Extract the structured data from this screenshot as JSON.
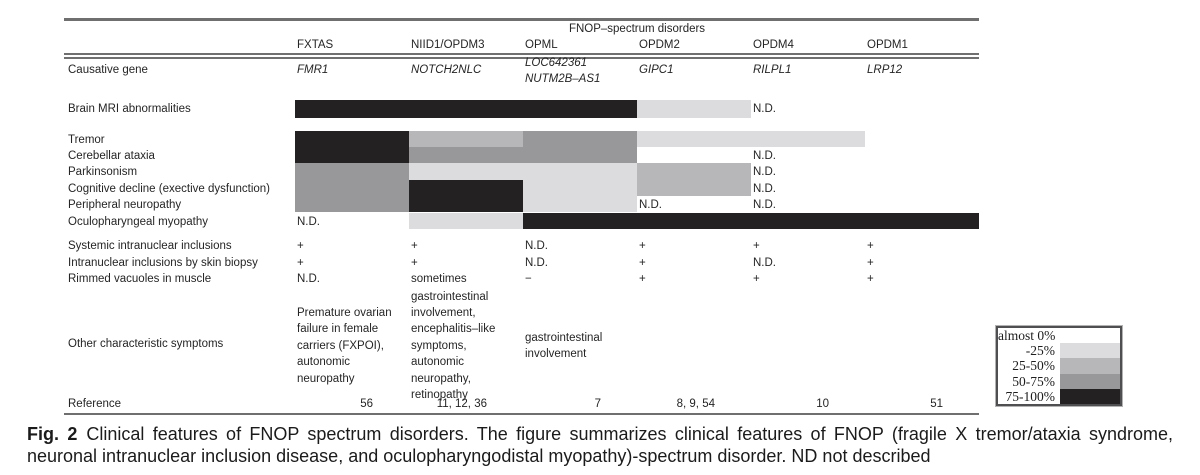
{
  "figure": {
    "group_header": "FNOP–spectrum disorders",
    "columns": [
      "FXTAS",
      "NIID1/OPDM3",
      "OPML",
      "OPDM2",
      "OPDM4",
      "OPDM1"
    ],
    "causative_gene_label": "Causative gene",
    "causative_genes": [
      "FMR1",
      "NOTCH2NLC",
      "LOC642361\nNUTM2B–AS1",
      "GIPC1",
      "RILPL1",
      "LRP12"
    ],
    "level_colors": {
      "-25%": "#dcdcde",
      "25-50%": "#b7b7b9",
      "50-75%": "#98989a",
      "75-100%": "#242122"
    },
    "heatmap_rows": [
      {
        "label": "Brain MRI abnormalities",
        "values": [
          "75-100%",
          "75-100%",
          "75-100%",
          "-25%",
          "N.D.",
          ""
        ]
      },
      {
        "label": "Tremor",
        "values": [
          "75-100%",
          "25-50%",
          "50-75%",
          "-25%",
          "-25%",
          ""
        ]
      },
      {
        "label": "Cerebellar ataxia",
        "values": [
          "75-100%",
          "50-75%",
          "50-75%",
          "",
          "N.D.",
          ""
        ]
      },
      {
        "label": "Parkinsonism",
        "values": [
          "50-75%",
          "-25%",
          "-25%",
          "25-50%",
          "N.D.",
          ""
        ]
      },
      {
        "label": "Cognitive decline (exective dysfunction)",
        "values": [
          "50-75%",
          "75-100%",
          "-25%",
          "25-50%",
          "N.D.",
          ""
        ]
      },
      {
        "label": "Peripheral neuropathy",
        "values": [
          "50-75%",
          "75-100%",
          "-25%",
          "N.D.",
          "N.D.",
          ""
        ]
      },
      {
        "label": "Oculopharyngeal myopathy",
        "values": [
          "N.D.",
          "-25%",
          "75-100%",
          "75-100%",
          "75-100%",
          "75-100%"
        ]
      }
    ],
    "value_rows": [
      {
        "label": "Systemic intranuclear inclusions",
        "values": [
          "+",
          "+",
          "N.D.",
          "+",
          "+",
          "+"
        ]
      },
      {
        "label": "Intranuclear inclusions by skin biopsy",
        "values": [
          "+",
          "+",
          "N.D.",
          "+",
          "N.D.",
          "+"
        ]
      },
      {
        "label": "Rimmed vacuoles in muscle",
        "values": [
          "N.D.",
          "sometimes",
          "−",
          "+",
          "+",
          "+"
        ]
      }
    ],
    "other_symptoms": {
      "label": "Other characteristic symptoms",
      "blocks": [
        {
          "col": 0,
          "lines": [
            "Premature ovarian",
            "failure in female",
            "carriers (FXPOI),",
            "autonomic",
            "neuropathy"
          ]
        },
        {
          "col": 1,
          "lines": [
            "gastrointestinal",
            "involvement,",
            "encephalitis–like",
            "symptoms,",
            "autonomic",
            "neuropathy,",
            "retinopathy"
          ]
        },
        {
          "col": 2,
          "lines": [
            "gastrointestinal",
            "involvement"
          ]
        }
      ]
    },
    "reference": {
      "label": "Reference",
      "values": [
        "56",
        "11, 12, 36",
        "7",
        "8, 9, 54",
        "10",
        "51"
      ]
    }
  },
  "legend": {
    "entries": [
      {
        "label": "almost 0%",
        "color": "#ffffff"
      },
      {
        "label": "-25%",
        "color": "#dcdcde"
      },
      {
        "label": "25-50%",
        "color": "#b7b7b9"
      },
      {
        "label": "50-75%",
        "color": "#98989a"
      },
      {
        "label": "75-100%",
        "color": "#242122"
      }
    ]
  },
  "caption": {
    "label": "Fig. 2",
    "line1": "Clinical features of FNOP spectrum disorders. The figure summarizes clinical features of FNOP (fragile X tremor/ataxia syndrome,",
    "line2": "neuronal intranuclear inclusion disease, and oculopharyngodistal myopathy)-spectrum disorder. ND not described"
  },
  "chart_data": {
    "type": "heatmap",
    "title": "Clinical features of FNOP spectrum disorders",
    "columns": [
      "FXTAS",
      "NIID1/OPDM3",
      "OPML",
      "OPDM2",
      "OPDM4",
      "OPDM1"
    ],
    "causative_genes": [
      "FMR1",
      "NOTCH2NLC",
      "LOC642361 NUTM2B–AS1",
      "GIPC1",
      "RILPL1",
      "LRP12"
    ],
    "scale": [
      "almost 0%",
      "-25%",
      "25-50%",
      "50-75%",
      "75-100%"
    ],
    "rows": [
      {
        "feature": "Brain MRI abnormalities",
        "values": [
          "75-100%",
          "75-100%",
          "75-100%",
          "-25%",
          "N.D.",
          null
        ]
      },
      {
        "feature": "Tremor",
        "values": [
          "75-100%",
          "25-50%",
          "50-75%",
          "-25%",
          "-25%",
          null
        ]
      },
      {
        "feature": "Cerebellar ataxia",
        "values": [
          "75-100%",
          "50-75%",
          "50-75%",
          null,
          "N.D.",
          null
        ]
      },
      {
        "feature": "Parkinsonism",
        "values": [
          "50-75%",
          "-25%",
          "-25%",
          "25-50%",
          "N.D.",
          null
        ]
      },
      {
        "feature": "Cognitive decline (exective dysfunction)",
        "values": [
          "50-75%",
          "75-100%",
          "-25%",
          "25-50%",
          "N.D.",
          null
        ]
      },
      {
        "feature": "Peripheral neuropathy",
        "values": [
          "50-75%",
          "75-100%",
          "-25%",
          "N.D.",
          "N.D.",
          null
        ]
      },
      {
        "feature": "Oculopharyngeal myopathy",
        "values": [
          "N.D.",
          "-25%",
          "75-100%",
          "75-100%",
          "75-100%",
          "75-100%"
        ]
      },
      {
        "feature": "Systemic intranuclear inclusions",
        "values": [
          "+",
          "+",
          "N.D.",
          "+",
          "+",
          "+"
        ]
      },
      {
        "feature": "Intranuclear inclusions by skin biopsy",
        "values": [
          "+",
          "+",
          "N.D.",
          "+",
          "N.D.",
          "+"
        ]
      },
      {
        "feature": "Rimmed vacuoles in muscle",
        "values": [
          "N.D.",
          "sometimes",
          "−",
          "+",
          "+",
          "+"
        ]
      }
    ],
    "references": [
      "56",
      "11, 12, 36",
      "7",
      "8, 9, 54",
      "10",
      "51"
    ]
  }
}
